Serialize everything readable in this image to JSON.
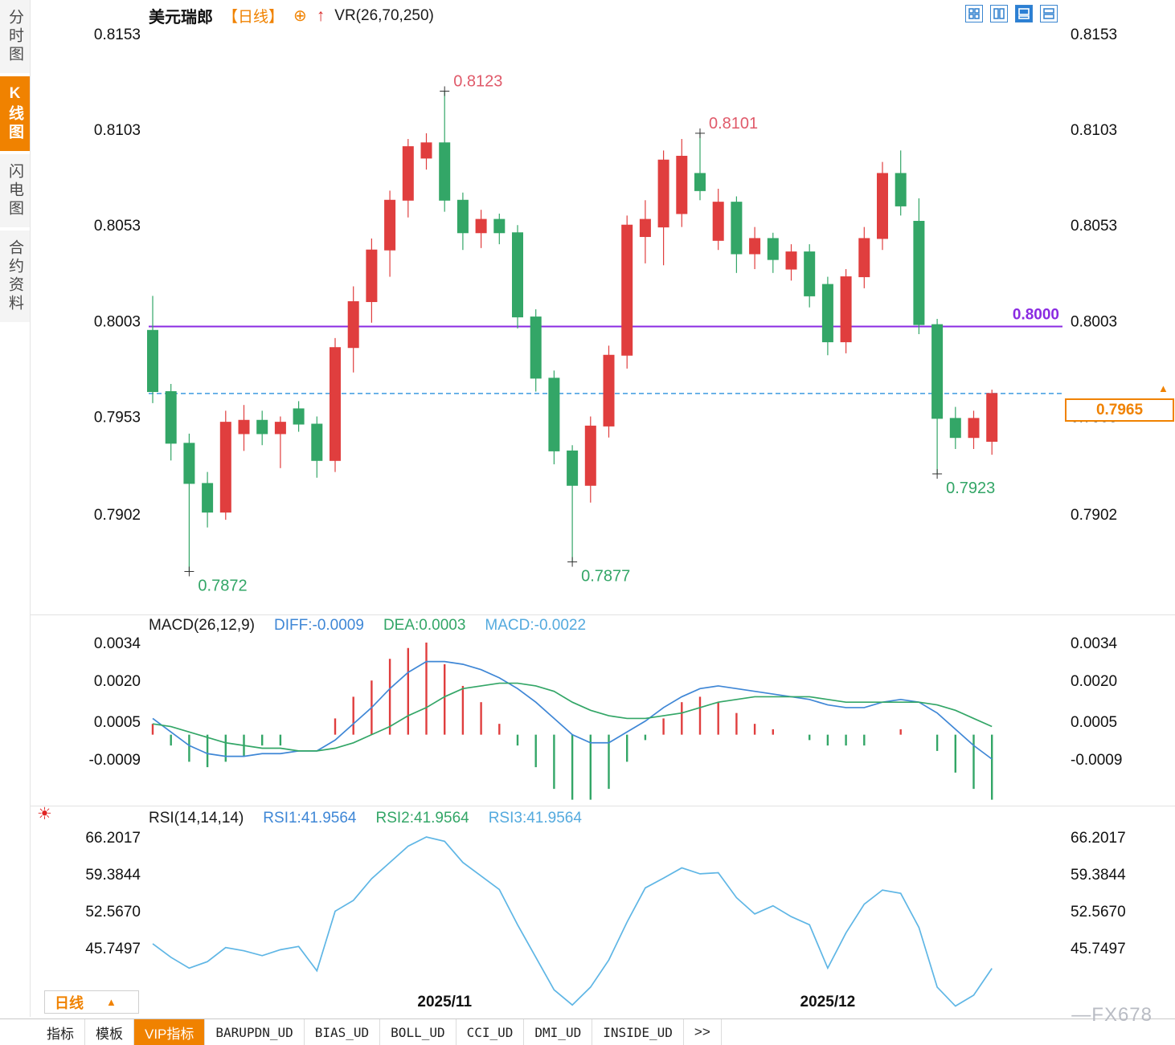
{
  "header": {
    "symbol": "美元瑞郎",
    "period_tag": "【日线】",
    "indicator": "VR(26,70,250)"
  },
  "sidebar": {
    "items": [
      {
        "id": "time-chart",
        "label": "分时图",
        "active": false
      },
      {
        "id": "kline-chart",
        "label": "K线图",
        "active": true
      },
      {
        "id": "flash-chart",
        "label": "闪电图",
        "active": false
      },
      {
        "id": "contract-info",
        "label": "合约资料",
        "active": false
      }
    ]
  },
  "colors": {
    "up": "#e03e3e",
    "down": "#33a667",
    "diff_line": "#3f87d6",
    "dea_line": "#33a667",
    "rsi_line": "#5fb6e5",
    "accent": "#f08200",
    "hline": "#8a2be2",
    "price_line": "#3d9be0",
    "annotation_high": "#e05a6a",
    "annotation_low": "#33a667",
    "axis_text": "#111111"
  },
  "chart_data": [
    {
      "type": "candlestick",
      "title": "美元瑞郎 日线 (USD/CHF Daily)",
      "y_ticks": [
        0.8153,
        0.8103,
        0.8053,
        0.8003,
        0.7953,
        0.7902
      ],
      "x_ticks": [
        {
          "label": "2025/11",
          "idx": 16
        },
        {
          "label": "2025/12",
          "idx": 37
        }
      ],
      "hline": {
        "value": 0.8,
        "label": "0.8000"
      },
      "current_price": {
        "value": 0.7965,
        "label": "0.7965"
      },
      "annotations": [
        {
          "label": "0.8123",
          "idx": 16,
          "kind": "high",
          "value": 0.8123
        },
        {
          "label": "0.8101",
          "idx": 30,
          "kind": "high",
          "value": 0.8101
        },
        {
          "label": "0.7872",
          "idx": 2,
          "kind": "low",
          "value": 0.7872
        },
        {
          "label": "0.7877",
          "idx": 23,
          "kind": "low",
          "value": 0.7877
        },
        {
          "label": "0.7923",
          "idx": 43,
          "kind": "low",
          "value": 0.7923
        }
      ],
      "candles": [
        [
          0.7998,
          0.8016,
          0.796,
          0.7966
        ],
        [
          0.7966,
          0.797,
          0.793,
          0.7939
        ],
        [
          0.7939,
          0.7944,
          0.7872,
          0.7918
        ],
        [
          0.7918,
          0.7924,
          0.7895,
          0.7903
        ],
        [
          0.7903,
          0.7956,
          0.7899,
          0.795
        ],
        [
          0.7944,
          0.7959,
          0.7935,
          0.7951
        ],
        [
          0.7951,
          0.7956,
          0.7938,
          0.7944
        ],
        [
          0.7944,
          0.7953,
          0.7926,
          0.795
        ],
        [
          0.7957,
          0.7961,
          0.7945,
          0.7949
        ],
        [
          0.7949,
          0.7953,
          0.7921,
          0.793
        ],
        [
          0.793,
          0.7994,
          0.7924,
          0.7989
        ],
        [
          0.7989,
          0.8021,
          0.7976,
          0.8013
        ],
        [
          0.8013,
          0.8046,
          0.8002,
          0.804
        ],
        [
          0.804,
          0.8071,
          0.8026,
          0.8066
        ],
        [
          0.8066,
          0.8098,
          0.8057,
          0.8094
        ],
        [
          0.8088,
          0.8101,
          0.8082,
          0.8096
        ],
        [
          0.8096,
          0.8123,
          0.806,
          0.8066
        ],
        [
          0.8066,
          0.807,
          0.804,
          0.8049
        ],
        [
          0.8049,
          0.8061,
          0.8041,
          0.8056
        ],
        [
          0.8056,
          0.8059,
          0.8043,
          0.8049
        ],
        [
          0.8049,
          0.8053,
          0.7999,
          0.8005
        ],
        [
          0.8005,
          0.8009,
          0.7966,
          0.7973
        ],
        [
          0.7973,
          0.7977,
          0.7928,
          0.7935
        ],
        [
          0.7935,
          0.7938,
          0.7877,
          0.7917
        ],
        [
          0.7917,
          0.7953,
          0.7908,
          0.7948
        ],
        [
          0.7948,
          0.799,
          0.7942,
          0.7985
        ],
        [
          0.7985,
          0.8058,
          0.7978,
          0.8053
        ],
        [
          0.8047,
          0.8066,
          0.8033,
          0.8056
        ],
        [
          0.8052,
          0.8092,
          0.8032,
          0.8087
        ],
        [
          0.8059,
          0.8098,
          0.8052,
          0.8089
        ],
        [
          0.808,
          0.8101,
          0.8066,
          0.8071
        ],
        [
          0.8045,
          0.8072,
          0.804,
          0.8065
        ],
        [
          0.8065,
          0.8068,
          0.8028,
          0.8038
        ],
        [
          0.8038,
          0.8052,
          0.803,
          0.8046
        ],
        [
          0.8046,
          0.8049,
          0.8028,
          0.8035
        ],
        [
          0.803,
          0.8043,
          0.8024,
          0.8039
        ],
        [
          0.8039,
          0.8043,
          0.801,
          0.8016
        ],
        [
          0.8022,
          0.8026,
          0.7985,
          0.7992
        ],
        [
          0.7992,
          0.803,
          0.7986,
          0.8026
        ],
        [
          0.8026,
          0.8052,
          0.802,
          0.8046
        ],
        [
          0.8046,
          0.8086,
          0.804,
          0.808
        ],
        [
          0.808,
          0.8092,
          0.8058,
          0.8063
        ],
        [
          0.8055,
          0.8067,
          0.7996,
          0.8001
        ],
        [
          0.8001,
          0.8004,
          0.7923,
          0.7952
        ],
        [
          0.7952,
          0.7958,
          0.7936,
          0.7942
        ],
        [
          0.7942,
          0.7956,
          0.7936,
          0.7952
        ],
        [
          0.794,
          0.7967,
          0.7933,
          0.7965
        ]
      ]
    },
    {
      "type": "macd",
      "label": "MACD(26,12,9)",
      "diff_label": "DIFF:-0.0009",
      "dea_label": "DEA:0.0003",
      "macd_label": "MACD:-0.0022",
      "y_ticks": [
        0.0034,
        0.002,
        0.0005,
        -0.0009
      ],
      "diff": [
        0.0006,
        0.0001,
        -0.0004,
        -0.0007,
        -0.0008,
        -0.0008,
        -0.0007,
        -0.0007,
        -0.0006,
        -0.0006,
        -0.0002,
        0.0004,
        0.001,
        0.0017,
        0.0023,
        0.0027,
        0.0027,
        0.0026,
        0.0024,
        0.0021,
        0.0017,
        0.0012,
        0.0006,
        0.0,
        -0.0003,
        -0.0003,
        0.0001,
        0.0005,
        0.001,
        0.0014,
        0.0017,
        0.0018,
        0.0017,
        0.0016,
        0.0015,
        0.0014,
        0.0013,
        0.0011,
        0.001,
        0.001,
        0.0012,
        0.0013,
        0.0012,
        0.0008,
        0.0002,
        -0.0004,
        -0.0009
      ],
      "dea": [
        0.0004,
        0.0003,
        0.0001,
        -0.0001,
        -0.0003,
        -0.0004,
        -0.0005,
        -0.0005,
        -0.0006,
        -0.0006,
        -0.0005,
        -0.0003,
        0.0,
        0.0003,
        0.0007,
        0.001,
        0.0014,
        0.0017,
        0.0018,
        0.0019,
        0.0019,
        0.0018,
        0.0016,
        0.0012,
        0.0009,
        0.0007,
        0.0006,
        0.0006,
        0.0007,
        0.0008,
        0.001,
        0.0012,
        0.0013,
        0.0014,
        0.0014,
        0.0014,
        0.0014,
        0.0013,
        0.0012,
        0.0012,
        0.0012,
        0.0012,
        0.0012,
        0.0011,
        0.0009,
        0.0006,
        0.0003
      ]
    },
    {
      "type": "line",
      "label": "RSI(14,14,14)",
      "rsi1_label": "RSI1:41.9564",
      "rsi2_label": "RSI2:41.9564",
      "rsi3_label": "RSI3:41.9564",
      "y_ticks": [
        66.2017,
        59.3844,
        52.567,
        45.7497
      ],
      "values": [
        46.5,
        44.0,
        42.0,
        43.2,
        45.8,
        45.2,
        44.3,
        45.4,
        46.0,
        41.5,
        52.5,
        54.5,
        58.5,
        61.5,
        64.5,
        66.2,
        65.4,
        61.5,
        59.0,
        56.5,
        50.0,
        44.0,
        38.0,
        35.2,
        38.5,
        43.5,
        50.5,
        56.8,
        58.6,
        60.5,
        59.4,
        59.6,
        55.0,
        52.0,
        53.5,
        51.5,
        50.0,
        42.0,
        48.5,
        53.8,
        56.4,
        55.8,
        49.5,
        38.5,
        35.0,
        37.0,
        41.9564
      ]
    }
  ],
  "footer": {
    "period_selector": {
      "label": "日线"
    },
    "tabs": [
      {
        "id": "indicators",
        "label": "指标"
      },
      {
        "id": "templates",
        "label": "模板"
      },
      {
        "id": "vip-indicators",
        "label": "VIP指标",
        "active": true
      },
      {
        "id": "barupdn-ud",
        "label": "BARUPDN_UD",
        "mono": true
      },
      {
        "id": "bias-ud",
        "label": "BIAS_UD",
        "mono": true
      },
      {
        "id": "boll-ud",
        "label": "BOLL_UD",
        "mono": true
      },
      {
        "id": "cci-ud",
        "label": "CCI_UD",
        "mono": true
      },
      {
        "id": "dmi-ud",
        "label": "DMI_UD",
        "mono": true
      },
      {
        "id": "inside-ud",
        "label": "INSIDE_UD",
        "mono": true
      },
      {
        "id": "more",
        "label": ">>"
      }
    ],
    "watermark": "—FX678"
  }
}
